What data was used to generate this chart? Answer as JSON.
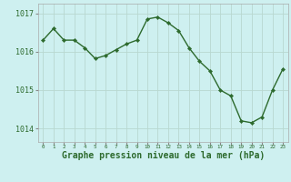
{
  "x": [
    0,
    1,
    2,
    3,
    4,
    5,
    6,
    7,
    8,
    9,
    10,
    11,
    12,
    13,
    14,
    15,
    16,
    17,
    18,
    19,
    20,
    21,
    22,
    23
  ],
  "y": [
    1016.3,
    1016.6,
    1016.3,
    1016.3,
    1016.1,
    1015.82,
    1015.9,
    1016.05,
    1016.2,
    1016.3,
    1016.85,
    1016.9,
    1016.75,
    1016.55,
    1016.1,
    1015.75,
    1015.5,
    1015.0,
    1014.85,
    1014.2,
    1014.15,
    1014.3,
    1015.0,
    1015.55
  ],
  "line_color": "#2d6a2d",
  "marker_color": "#2d6a2d",
  "bg_color": "#cef0f0",
  "grid_color": "#b8d8d0",
  "xlabel": "Graphe pression niveau de la mer (hPa)",
  "xlabel_fontsize": 7,
  "yticks": [
    1014,
    1015,
    1016,
    1017
  ],
  "ylim": [
    1013.65,
    1017.25
  ],
  "xlim": [
    -0.5,
    23.5
  ],
  "xticks": [
    0,
    1,
    2,
    3,
    4,
    5,
    6,
    7,
    8,
    9,
    10,
    11,
    12,
    13,
    14,
    15,
    16,
    17,
    18,
    19,
    20,
    21,
    22,
    23
  ]
}
